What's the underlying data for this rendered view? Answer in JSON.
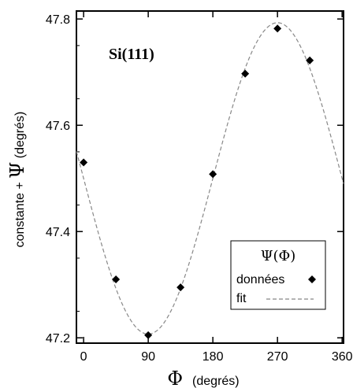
{
  "chart_data": {
    "type": "scatter",
    "annotation": "Si(111)",
    "xlabel": {
      "symbol": "Φ",
      "unit": "(degrés)"
    },
    "ylabel": {
      "prefix": "constante + ",
      "symbol": "Ψ",
      "unit": " (degrés)"
    },
    "xlim": [
      -10,
      362
    ],
    "ylim": [
      47.19,
      47.815
    ],
    "xticks": [
      0,
      90,
      180,
      270,
      360
    ],
    "xtick_labels": [
      "0",
      "90",
      "180",
      "270",
      "360"
    ],
    "yticks": [
      47.2,
      47.4,
      47.6,
      47.8
    ],
    "ytick_labels": [
      "47.2",
      "47.4",
      "47.6",
      "47.8"
    ],
    "grid": false,
    "legend": {
      "title": "Ψ(Φ)",
      "position": "bottom-right",
      "entries": [
        {
          "label": "données",
          "marker": "diamond"
        },
        {
          "label": "fit",
          "style": "dashed"
        }
      ]
    },
    "series": [
      {
        "name": "données",
        "marker": "diamond",
        "color": "#000000",
        "x": [
          0,
          45,
          90,
          135,
          180,
          225,
          270,
          315
        ],
        "y": [
          47.53,
          47.31,
          47.205,
          47.295,
          47.508,
          47.697,
          47.782,
          47.722
        ]
      },
      {
        "name": "fit",
        "style": "dashed",
        "color": "#888888",
        "model": {
          "offset": 47.5,
          "amplitude": 0.293,
          "phase_deg": 0
        }
      }
    ]
  }
}
